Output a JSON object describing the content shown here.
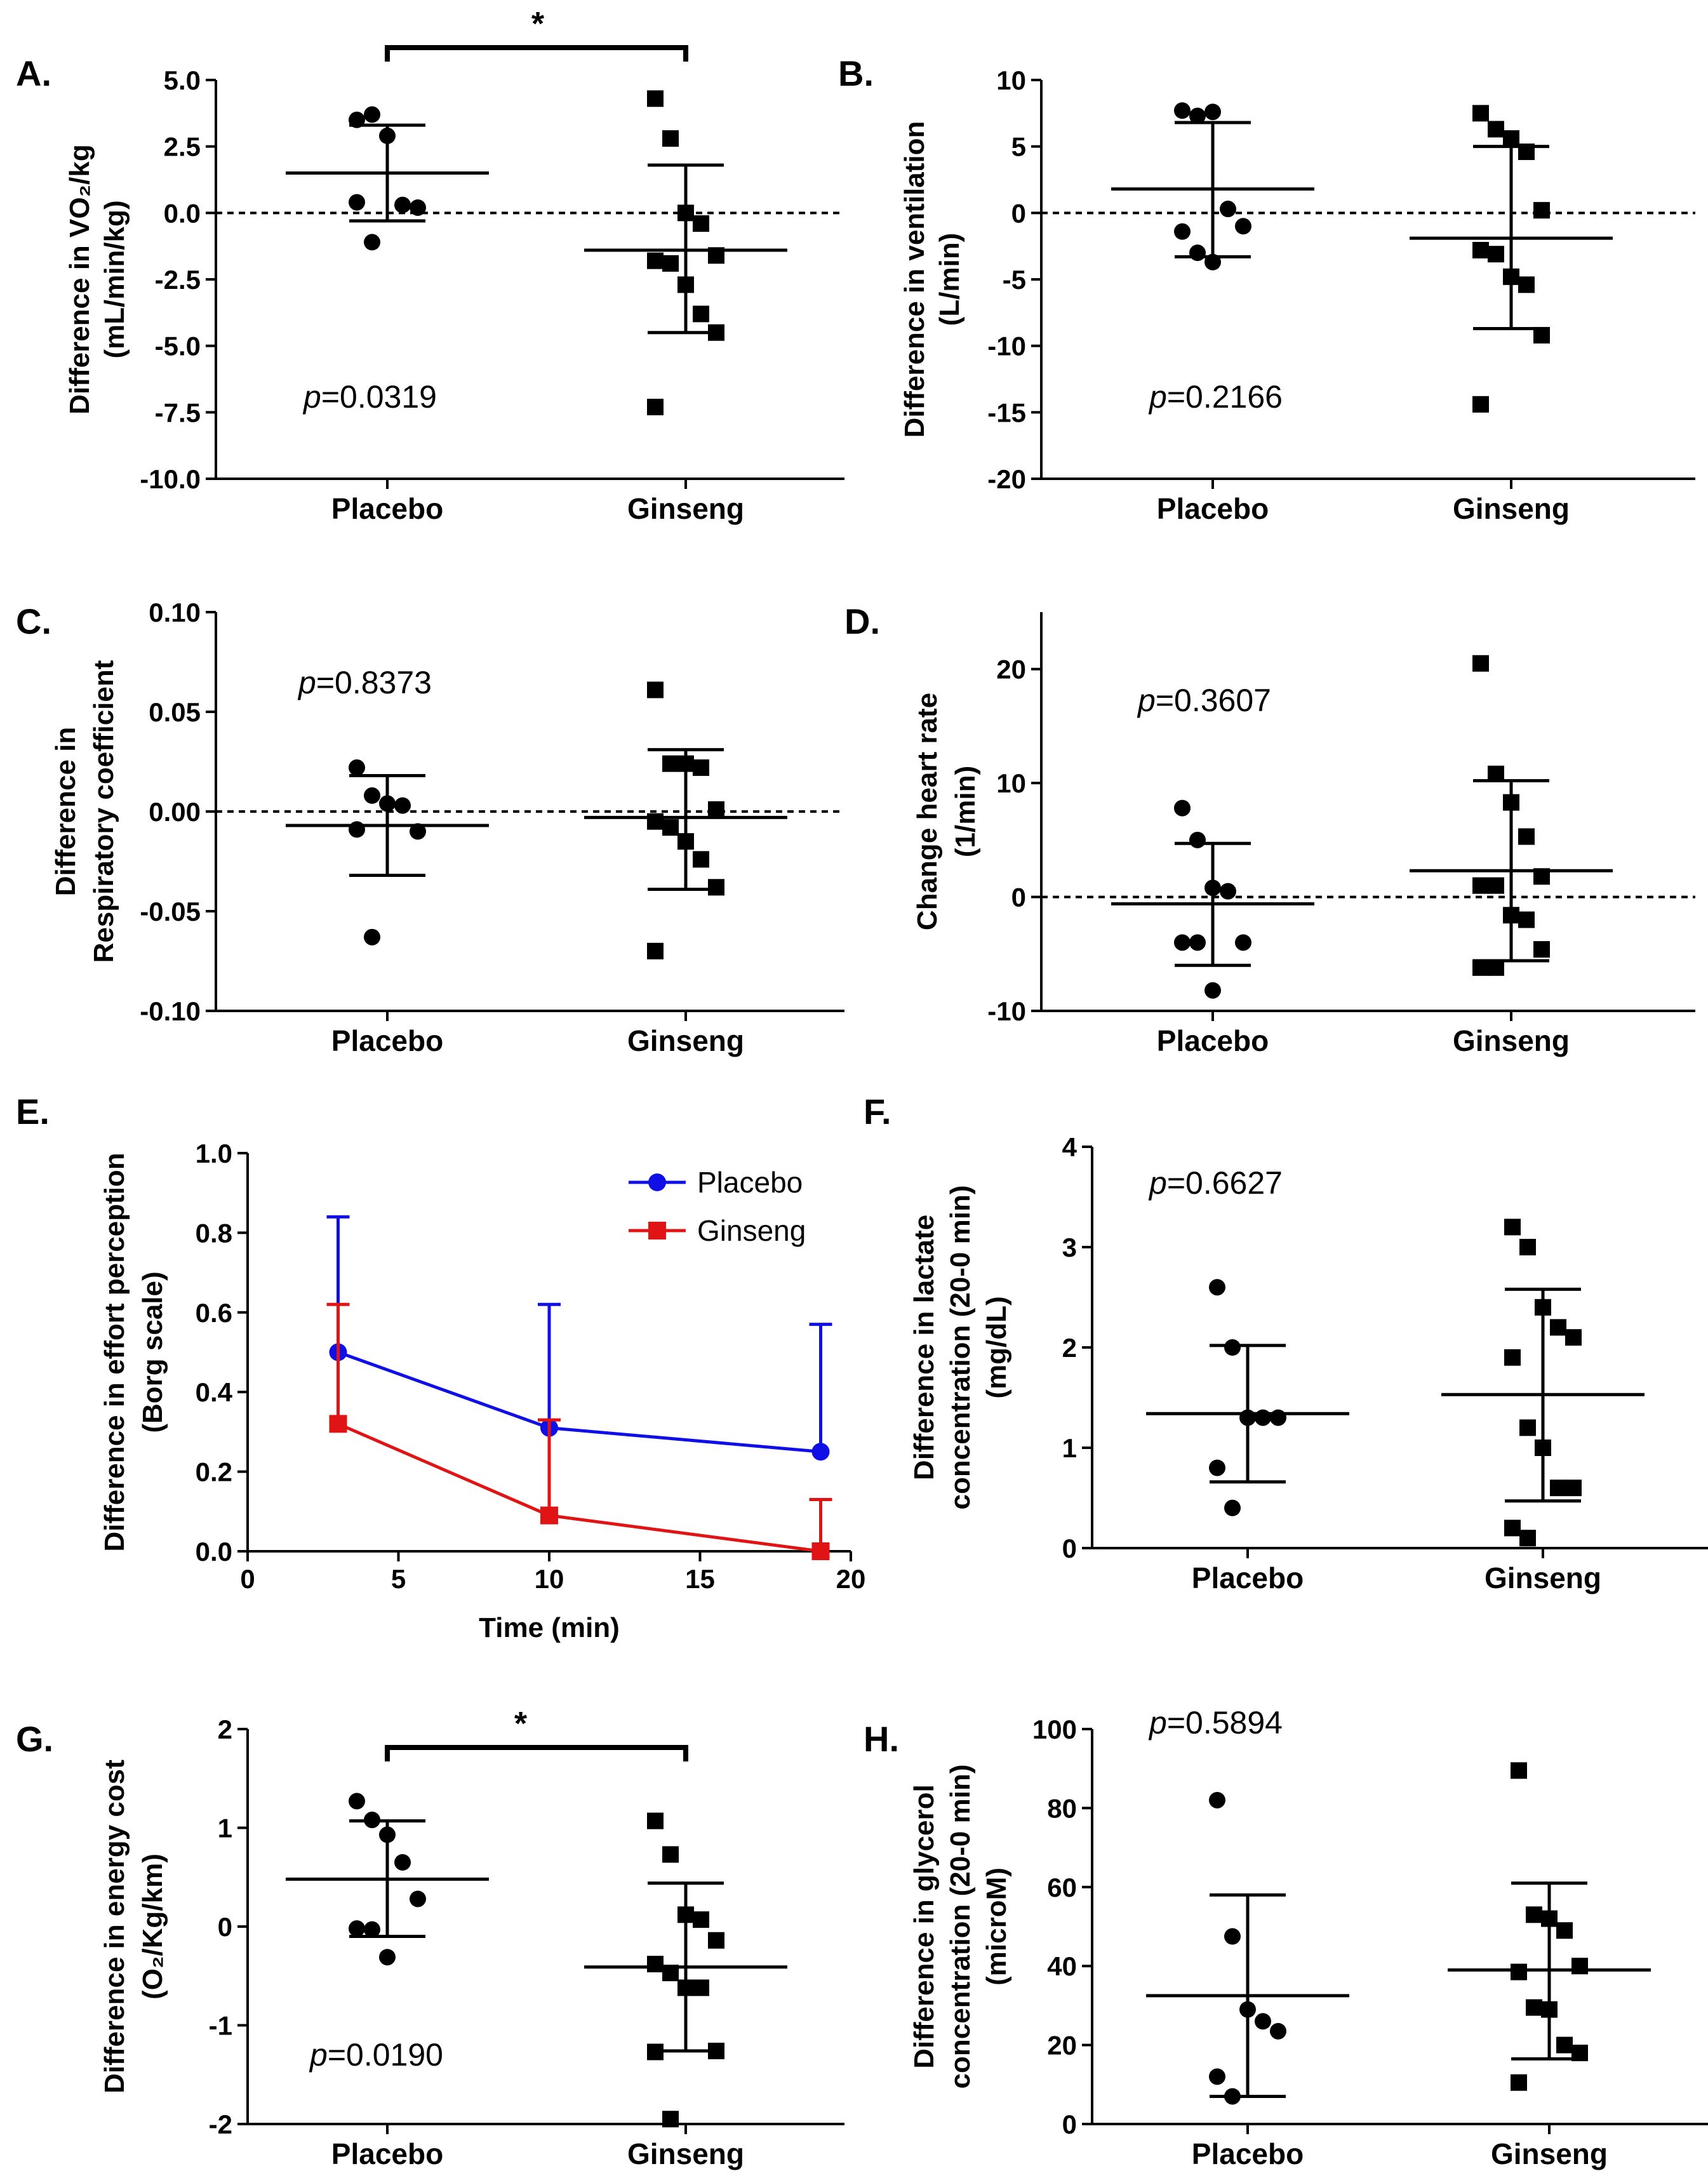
{
  "colors": {
    "axis": "#000000",
    "placebo_line": "#1010e6",
    "ginseng_line": "#e01414"
  },
  "chart_data": [
    {
      "id": "A",
      "type": "scatter",
      "label": "A.",
      "ylabel": [
        "Difference in VO₂/kg",
        "(mL/min/kg)"
      ],
      "ylim": [
        -10,
        5
      ],
      "yticks": [
        "5.0",
        "2.5",
        "0.0",
        "-2.5",
        "-5.0",
        "-7.5",
        "-10.0"
      ],
      "ytick_values": [
        5,
        2.5,
        0,
        -2.5,
        -5,
        -7.5,
        -10
      ],
      "zero_line": true,
      "categories": [
        "Placebo",
        "Ginseng"
      ],
      "p_value": "=0.0319",
      "significance": "*",
      "series": [
        {
          "name": "Placebo",
          "marker": "circle",
          "mean": 1.5,
          "sd_upper": 3.3,
          "sd_lower": -0.3,
          "points": [
            3.5,
            3.7,
            2.9,
            0.3,
            0.2,
            0.4,
            -1.1
          ]
        },
        {
          "name": "Ginseng",
          "marker": "square",
          "mean": -1.4,
          "sd_upper": 1.8,
          "sd_lower": -4.5,
          "points": [
            4.3,
            2.8,
            0.0,
            -0.4,
            -1.6,
            -1.8,
            -1.9,
            -2.7,
            -3.8,
            -4.5,
            -7.3
          ]
        }
      ]
    },
    {
      "id": "B",
      "type": "scatter",
      "label": "B.",
      "ylabel": [
        "Difference in ventilation",
        "(L/min)"
      ],
      "ylim": [
        -20,
        10
      ],
      "yticks": [
        "10",
        "5",
        "0",
        "-5",
        "-10",
        "-15",
        "-20"
      ],
      "ytick_values": [
        10,
        5,
        0,
        -5,
        -10,
        -15,
        -20
      ],
      "zero_line": true,
      "categories": [
        "Placebo",
        "Ginseng"
      ],
      "p_value": "=0.2166",
      "significance": "",
      "series": [
        {
          "name": "Placebo",
          "marker": "circle",
          "mean": 1.8,
          "sd_upper": 6.8,
          "sd_lower": -3.3,
          "points": [
            7.7,
            7.3,
            7.6,
            0.3,
            -1.0,
            -1.4,
            -3.0,
            -3.7
          ]
        },
        {
          "name": "Ginseng",
          "marker": "square",
          "mean": -1.9,
          "sd_upper": 5.0,
          "sd_lower": -8.7,
          "points": [
            7.5,
            6.3,
            5.6,
            4.6,
            0.2,
            -2.8,
            -3.1,
            -4.8,
            -5.4,
            -9.2,
            -14.4
          ]
        }
      ]
    },
    {
      "id": "C",
      "type": "scatter",
      "label": "C.",
      "ylabel": [
        "Difference in",
        "Respiratory coefficient"
      ],
      "ylim": [
        -0.1,
        0.1
      ],
      "yticks": [
        "0.10",
        "0.05",
        "0.00",
        "-0.05",
        "-0.10"
      ],
      "ytick_values": [
        0.1,
        0.05,
        0,
        -0.05,
        -0.1
      ],
      "zero_line": true,
      "categories": [
        "Placebo",
        "Ginseng"
      ],
      "p_value": "=0.8373",
      "significance": "",
      "series": [
        {
          "name": "Placebo",
          "marker": "circle",
          "mean": -0.007,
          "sd_upper": 0.018,
          "sd_lower": -0.032,
          "points": [
            0.022,
            0.008,
            0.004,
            0.003,
            -0.01,
            -0.009,
            -0.063
          ]
        },
        {
          "name": "Ginseng",
          "marker": "square",
          "mean": -0.003,
          "sd_upper": 0.031,
          "sd_lower": -0.039,
          "points": [
            0.061,
            0.024,
            0.024,
            0.022,
            0.001,
            -0.005,
            -0.008,
            -0.015,
            -0.024,
            -0.038,
            -0.07
          ]
        }
      ]
    },
    {
      "id": "D",
      "type": "scatter",
      "label": "D.",
      "ylabel": [
        "Change heart rate",
        "(1/min)"
      ],
      "ylim": [
        -10,
        25
      ],
      "yticks": [
        "20",
        "10",
        "0",
        "-10"
      ],
      "ytick_values": [
        20,
        10,
        0,
        -10
      ],
      "zero_line": true,
      "categories": [
        "Placebo",
        "Ginseng"
      ],
      "p_value": "=0.3607",
      "significance": "",
      "series": [
        {
          "name": "Placebo",
          "marker": "circle",
          "mean": -0.6,
          "sd_upper": 4.7,
          "sd_lower": -6.0,
          "points": [
            7.8,
            5.0,
            0.8,
            0.5,
            -4.0,
            -4.0,
            -4.0,
            -8.2
          ]
        },
        {
          "name": "Ginseng",
          "marker": "square",
          "mean": 2.3,
          "sd_upper": 10.2,
          "sd_lower": -5.6,
          "points": [
            20.5,
            10.8,
            8.3,
            5.3,
            1.8,
            1.0,
            1.0,
            -1.6,
            -2.0,
            -4.6,
            -6.2,
            -6.2
          ]
        }
      ]
    },
    {
      "id": "E",
      "type": "line",
      "label": "E.",
      "ylabel": [
        "Difference in effort perception",
        "(Borg scale)"
      ],
      "xlabel": "Time (min)",
      "xlim": [
        0,
        20
      ],
      "xticks": [
        "0",
        "5",
        "10",
        "15",
        "20"
      ],
      "xtick_values": [
        0,
        5,
        10,
        15,
        20
      ],
      "ylim": [
        0,
        1
      ],
      "yticks": [
        "1.0",
        "0.8",
        "0.6",
        "0.4",
        "0.2",
        "0.0"
      ],
      "ytick_values": [
        1,
        0.8,
        0.6,
        0.4,
        0.2,
        0
      ],
      "legend": "top-right",
      "series": [
        {
          "name": "Placebo",
          "color": "#1010e6",
          "marker": "circle",
          "x": [
            3,
            10,
            19
          ],
          "y": [
            0.5,
            0.31,
            0.25
          ],
          "err_upper": [
            0.84,
            0.62,
            0.57
          ]
        },
        {
          "name": "Ginseng",
          "color": "#e01414",
          "marker": "square",
          "x": [
            3,
            10,
            19
          ],
          "y": [
            0.32,
            0.09,
            0.0
          ],
          "err_upper": [
            0.62,
            0.33,
            0.13
          ]
        }
      ]
    },
    {
      "id": "F",
      "type": "scatter",
      "label": "F.",
      "ylabel": [
        "Difference in lactate",
        "concentration (20-0 min)",
        "(mg/dL)"
      ],
      "ylim": [
        0,
        4
      ],
      "yticks": [
        "4",
        "3",
        "2",
        "1",
        "0"
      ],
      "ytick_values": [
        4,
        3,
        2,
        1,
        0
      ],
      "zero_line": false,
      "categories": [
        "Placebo",
        "Ginseng"
      ],
      "p_value": "=0.6627",
      "significance": "",
      "series": [
        {
          "name": "Placebo",
          "marker": "circle",
          "mean": 1.34,
          "sd_upper": 2.02,
          "sd_lower": 0.66,
          "points": [
            2.6,
            2.0,
            1.3,
            1.3,
            1.3,
            0.8,
            0.4
          ]
        },
        {
          "name": "Ginseng",
          "marker": "square",
          "mean": 1.53,
          "sd_upper": 2.58,
          "sd_lower": 0.47,
          "points": [
            3.2,
            3.0,
            2.4,
            2.2,
            2.1,
            1.9,
            1.2,
            1.0,
            0.6,
            0.6,
            0.2,
            0.1
          ]
        }
      ]
    },
    {
      "id": "G",
      "type": "scatter",
      "label": "G.",
      "ylabel": [
        "Difference in energy cost",
        "(O₂/Kg/km)"
      ],
      "ylim": [
        -2,
        2
      ],
      "yticks": [
        "2",
        "1",
        "0",
        "-1",
        "-2"
      ],
      "ytick_values": [
        2,
        1,
        0,
        -1,
        -2
      ],
      "zero_line": false,
      "categories": [
        "Placebo",
        "Ginseng"
      ],
      "p_value": "=0.0190",
      "significance": "*",
      "series": [
        {
          "name": "Placebo",
          "marker": "circle",
          "mean": 0.48,
          "sd_upper": 1.07,
          "sd_lower": -0.1,
          "points": [
            1.27,
            1.08,
            0.93,
            0.65,
            0.28,
            -0.02,
            -0.03,
            -0.31
          ]
        },
        {
          "name": "Ginseng",
          "marker": "square",
          "mean": -0.41,
          "sd_upper": 0.44,
          "sd_lower": -1.26,
          "points": [
            1.07,
            0.73,
            0.12,
            0.07,
            -0.14,
            -0.38,
            -0.47,
            -0.62,
            -0.62,
            -1.26,
            -1.27,
            -1.95
          ]
        }
      ]
    },
    {
      "id": "H",
      "type": "scatter",
      "label": "H.",
      "ylabel": [
        "Difference in glycerol",
        "concentration (20-0 min)",
        "(microM)"
      ],
      "ylim": [
        0,
        100
      ],
      "yticks": [
        "100",
        "80",
        "60",
        "40",
        "20",
        "0"
      ],
      "ytick_values": [
        100,
        80,
        60,
        40,
        20,
        0
      ],
      "zero_line": false,
      "categories": [
        "Placebo",
        "Ginseng"
      ],
      "p_value": "=0.5894",
      "significance": "",
      "series": [
        {
          "name": "Placebo",
          "marker": "circle",
          "mean": 32.5,
          "sd_upper": 58,
          "sd_lower": 7,
          "points": [
            82,
            47.5,
            29,
            26,
            23.5,
            12,
            7
          ]
        },
        {
          "name": "Ginseng",
          "marker": "square",
          "mean": 39,
          "sd_upper": 61,
          "sd_lower": 16.5,
          "points": [
            89.5,
            53,
            52,
            49,
            40,
            38.5,
            29.5,
            29,
            20,
            18,
            10.5
          ]
        }
      ]
    }
  ]
}
